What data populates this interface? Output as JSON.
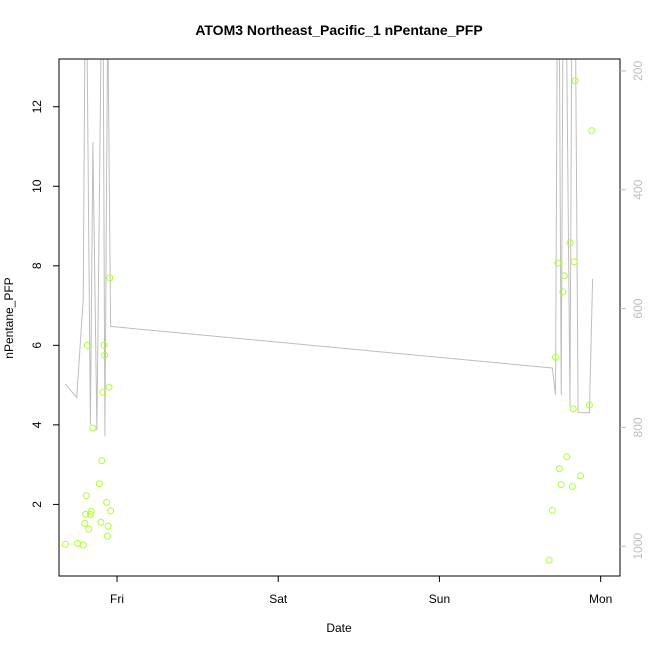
{
  "chart_data": {
    "type": "scatter",
    "title": "ATOM3 Northeast_Pacific_1 nPentane_PFP",
    "xlabel": "Date",
    "ylabel": "nPentane_PFP",
    "x_unit": "day",
    "x_tick_labels": [
      {
        "x": 0.0,
        "label": "Fri"
      },
      {
        "x": 1.0,
        "label": "Sat"
      },
      {
        "x": 2.0,
        "label": "Sun"
      },
      {
        "x": 3.0,
        "label": "Mon"
      }
    ],
    "xlim": [
      -0.36,
      3.12
    ],
    "ylim": [
      0.2,
      13.2
    ],
    "yticks": [
      2,
      4,
      6,
      8,
      10,
      12
    ],
    "y2lim": [
      1050,
      180
    ],
    "y2ticks": [
      200,
      400,
      600,
      800,
      1000
    ],
    "colors": {
      "points": "#adff2f",
      "line": "#bebebe",
      "axes": "#000000"
    },
    "series": [
      {
        "values": [
          [
            -0.32,
            1.0
          ],
          [
            -0.245,
            1.02
          ],
          [
            -0.21,
            0.98
          ],
          [
            -0.2,
            1.52
          ],
          [
            -0.195,
            1.75
          ],
          [
            -0.19,
            2.22
          ],
          [
            -0.185,
            6.0
          ],
          [
            -0.175,
            1.38
          ],
          [
            -0.165,
            1.75
          ],
          [
            -0.16,
            1.83
          ],
          [
            -0.15,
            3.92
          ],
          [
            -0.11,
            2.52
          ],
          [
            -0.1,
            1.55
          ],
          [
            -0.095,
            3.1
          ],
          [
            -0.088,
            4.82
          ],
          [
            -0.08,
            6.0
          ],
          [
            -0.077,
            5.75
          ],
          [
            -0.065,
            2.05
          ],
          [
            -0.06,
            1.2
          ],
          [
            -0.055,
            1.45
          ],
          [
            -0.05,
            4.95
          ],
          [
            -0.045,
            7.7
          ],
          [
            -0.04,
            1.84
          ],
          [
            2.68,
            0.6
          ],
          [
            2.7,
            1.85
          ],
          [
            2.72,
            5.7
          ],
          [
            2.735,
            8.07
          ],
          [
            2.745,
            2.9
          ],
          [
            2.755,
            2.5
          ],
          [
            2.765,
            7.35
          ],
          [
            2.775,
            7.75
          ],
          [
            2.79,
            3.2
          ],
          [
            2.81,
            8.58
          ],
          [
            2.825,
            2.45
          ],
          [
            2.83,
            4.4
          ],
          [
            2.835,
            8.1
          ],
          [
            2.842,
            12.65
          ],
          [
            2.875,
            2.72
          ],
          [
            2.93,
            4.5
          ],
          [
            2.945,
            11.4
          ]
        ]
      },
      {
        "axis": "right",
        "values": [
          [
            -0.32,
            727
          ],
          [
            -0.25,
            750
          ],
          [
            -0.21,
            585
          ],
          [
            -0.2,
            180
          ],
          [
            -0.185,
            180
          ],
          [
            -0.165,
            795
          ],
          [
            -0.15,
            320
          ],
          [
            -0.125,
            805
          ],
          [
            -0.1,
            180
          ],
          [
            -0.085,
            180
          ],
          [
            -0.075,
            815
          ],
          [
            -0.06,
            180
          ],
          [
            -0.055,
            180
          ],
          [
            -0.04,
            630
          ],
          [
            2.7,
            700
          ],
          [
            2.72,
            745
          ],
          [
            2.73,
            180
          ],
          [
            2.745,
            180
          ],
          [
            2.755,
            745
          ],
          [
            2.765,
            180
          ],
          [
            2.79,
            180
          ],
          [
            2.81,
            765
          ],
          [
            2.82,
            180
          ],
          [
            2.845,
            180
          ],
          [
            2.86,
            775
          ],
          [
            2.87,
            775
          ],
          [
            2.88,
            775
          ],
          [
            2.92,
            775
          ],
          [
            2.93,
            775
          ],
          [
            2.95,
            550
          ]
        ]
      }
    ]
  }
}
